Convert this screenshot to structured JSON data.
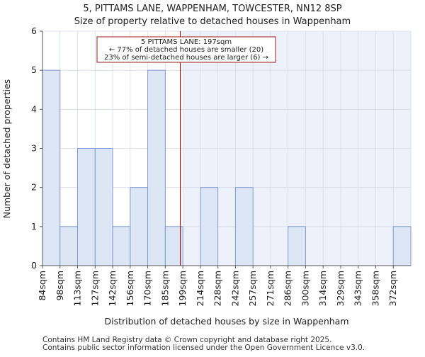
{
  "chart_data": {
    "type": "bar",
    "title": "5, PITTAMS LANE, WAPPENHAM, TOWCESTER, NN12 8SP",
    "subtitle": "Size of property relative to detached houses in Wappenham",
    "xlabel": "Distribution of detached houses by size in Wappenham",
    "ylabel": "Number of detached properties",
    "categories": [
      "84sqm",
      "98sqm",
      "113sqm",
      "127sqm",
      "142sqm",
      "156sqm",
      "170sqm",
      "185sqm",
      "199sqm",
      "214sqm",
      "228sqm",
      "242sqm",
      "257sqm",
      "271sqm",
      "286sqm",
      "300sqm",
      "314sqm",
      "329sqm",
      "343sqm",
      "358sqm",
      "372sqm"
    ],
    "values": [
      5,
      1,
      3,
      3,
      1,
      2,
      5,
      1,
      0,
      2,
      0,
      2,
      0,
      0,
      1,
      0,
      0,
      0,
      0,
      0,
      1
    ],
    "ylim": [
      0,
      6
    ],
    "yticks": [
      "0",
      "1",
      "2",
      "3",
      "4",
      "5",
      "6"
    ],
    "property_size_sqm": 197,
    "property_bin_index": 7,
    "annotation": {
      "line1": "5 PITTAMS LANE: 197sqm",
      "line2": "← 77% of detached houses are smaller (20)",
      "line3": "23% of semi-detached houses are larger (6) →"
    },
    "colors": {
      "bar_fill": "#dce6f5",
      "bar_stroke": "#7f9bd0",
      "highlight_bg": "#eef1fa",
      "marker_line": "#9b1c1c",
      "grid": "#d8dce6",
      "axis": "#555555"
    }
  },
  "footer": {
    "line1": "Contains HM Land Registry data © Crown copyright and database right 2025.",
    "line2": "Contains public sector information licensed under the Open Government Licence v3.0."
  }
}
